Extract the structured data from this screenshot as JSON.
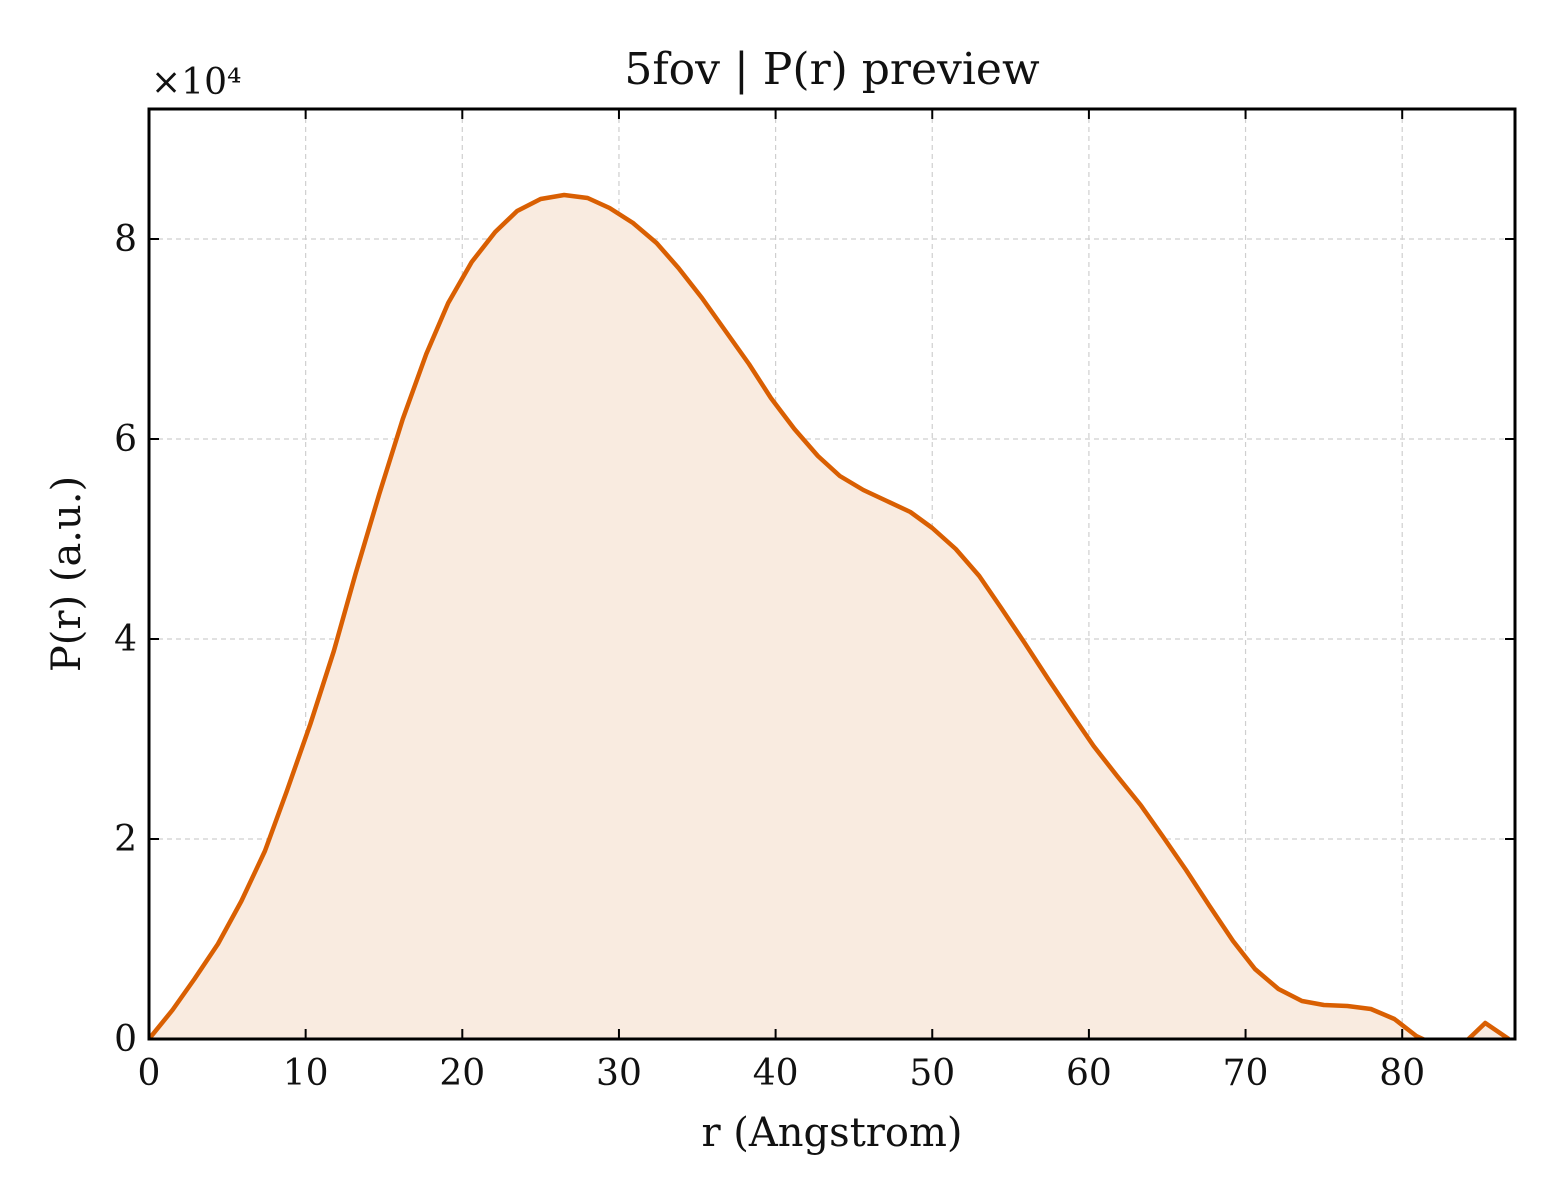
{
  "chart_data": {
    "type": "area",
    "title": "5fov | P(r) preview",
    "xlabel": "r (Angstrom)",
    "ylabel": "P(r) (a.u.)",
    "y_scale_label": "×10⁴",
    "y_scale_factor": 10000,
    "xlim": [
      0,
      87.2
    ],
    "ylim": [
      0,
      93000
    ],
    "x_ticks": [
      0,
      10,
      20,
      30,
      40,
      50,
      60,
      70,
      80
    ],
    "y_ticks": [
      0,
      20000,
      40000,
      60000,
      80000
    ],
    "y_tick_labels": [
      "0",
      "2",
      "4",
      "6",
      "8"
    ],
    "grid": true,
    "line_color": "#d95f02",
    "fill_color": "#f9ebe0",
    "series": [
      {
        "x": [
          0,
          1.5,
          2.9,
          4.4,
          5.9,
          7.4,
          8.8,
          10.3,
          11.8,
          13.2,
          14.7,
          16.2,
          17.7,
          19.1,
          20.6,
          22.1,
          23.5,
          25.0,
          26.5,
          28.0,
          29.4,
          30.9,
          32.4,
          33.8,
          35.3,
          36.8,
          38.3,
          39.7,
          41.2,
          42.7,
          44.1,
          45.6,
          47.1,
          48.6,
          50.0,
          51.5,
          53.0,
          54.4,
          55.9,
          57.4,
          58.9,
          60.3,
          61.8,
          63.3,
          64.7,
          66.2,
          67.7,
          69.2,
          70.6,
          72.1,
          73.6,
          75.0,
          76.5,
          78.0,
          79.5,
          80.9,
          82.4,
          83.9,
          85.3,
          86.8
        ],
        "y": [
          0,
          2900,
          6000,
          9500,
          13800,
          18800,
          24800,
          31500,
          38800,
          46600,
          54500,
          62000,
          68500,
          73600,
          77700,
          80700,
          82800,
          84000,
          84400,
          84100,
          83100,
          81600,
          79600,
          77100,
          74100,
          70800,
          67500,
          64100,
          61000,
          58300,
          56300,
          54900,
          53800,
          52700,
          51100,
          49000,
          46300,
          43100,
          39600,
          36000,
          32500,
          29300,
          26300,
          23400,
          20300,
          16900,
          13300,
          9800,
          7000,
          5000,
          3800,
          3400,
          3300,
          3000,
          2000,
          300,
          -800,
          -500,
          1600,
          0
        ]
      }
    ]
  }
}
